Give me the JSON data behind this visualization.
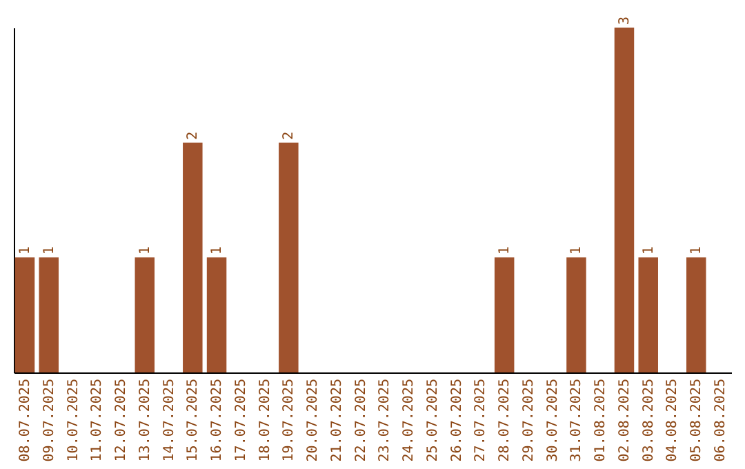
{
  "chart_data": {
    "type": "bar",
    "categories": [
      "08.07.2025",
      "09.07.2025",
      "10.07.2025",
      "11.07.2025",
      "12.07.2025",
      "13.07.2025",
      "14.07.2025",
      "15.07.2025",
      "16.07.2025",
      "17.07.2025",
      "18.07.2025",
      "19.07.2025",
      "20.07.2025",
      "21.07.2025",
      "22.07.2025",
      "23.07.2025",
      "24.07.2025",
      "25.07.2025",
      "26.07.2025",
      "27.07.2025",
      "28.07.2025",
      "29.07.2025",
      "30.07.2025",
      "31.07.2025",
      "01.08.2025",
      "02.08.2025",
      "03.08.2025",
      "04.08.2025",
      "05.08.2025",
      "06.08.2025"
    ],
    "values": [
      1,
      1,
      0,
      0,
      0,
      1,
      0,
      2,
      1,
      0,
      0,
      2,
      0,
      0,
      0,
      0,
      0,
      0,
      0,
      0,
      1,
      0,
      0,
      1,
      0,
      3,
      1,
      0,
      1,
      0
    ],
    "value_labels": [
      "1",
      "1",
      null,
      null,
      null,
      "1",
      null,
      "2",
      "1",
      null,
      null,
      "2",
      null,
      null,
      null,
      null,
      null,
      null,
      null,
      null,
      "1",
      null,
      null,
      "1",
      null,
      "3",
      "1",
      null,
      "1",
      null
    ],
    "color": "#a0522d",
    "grid": false
  }
}
